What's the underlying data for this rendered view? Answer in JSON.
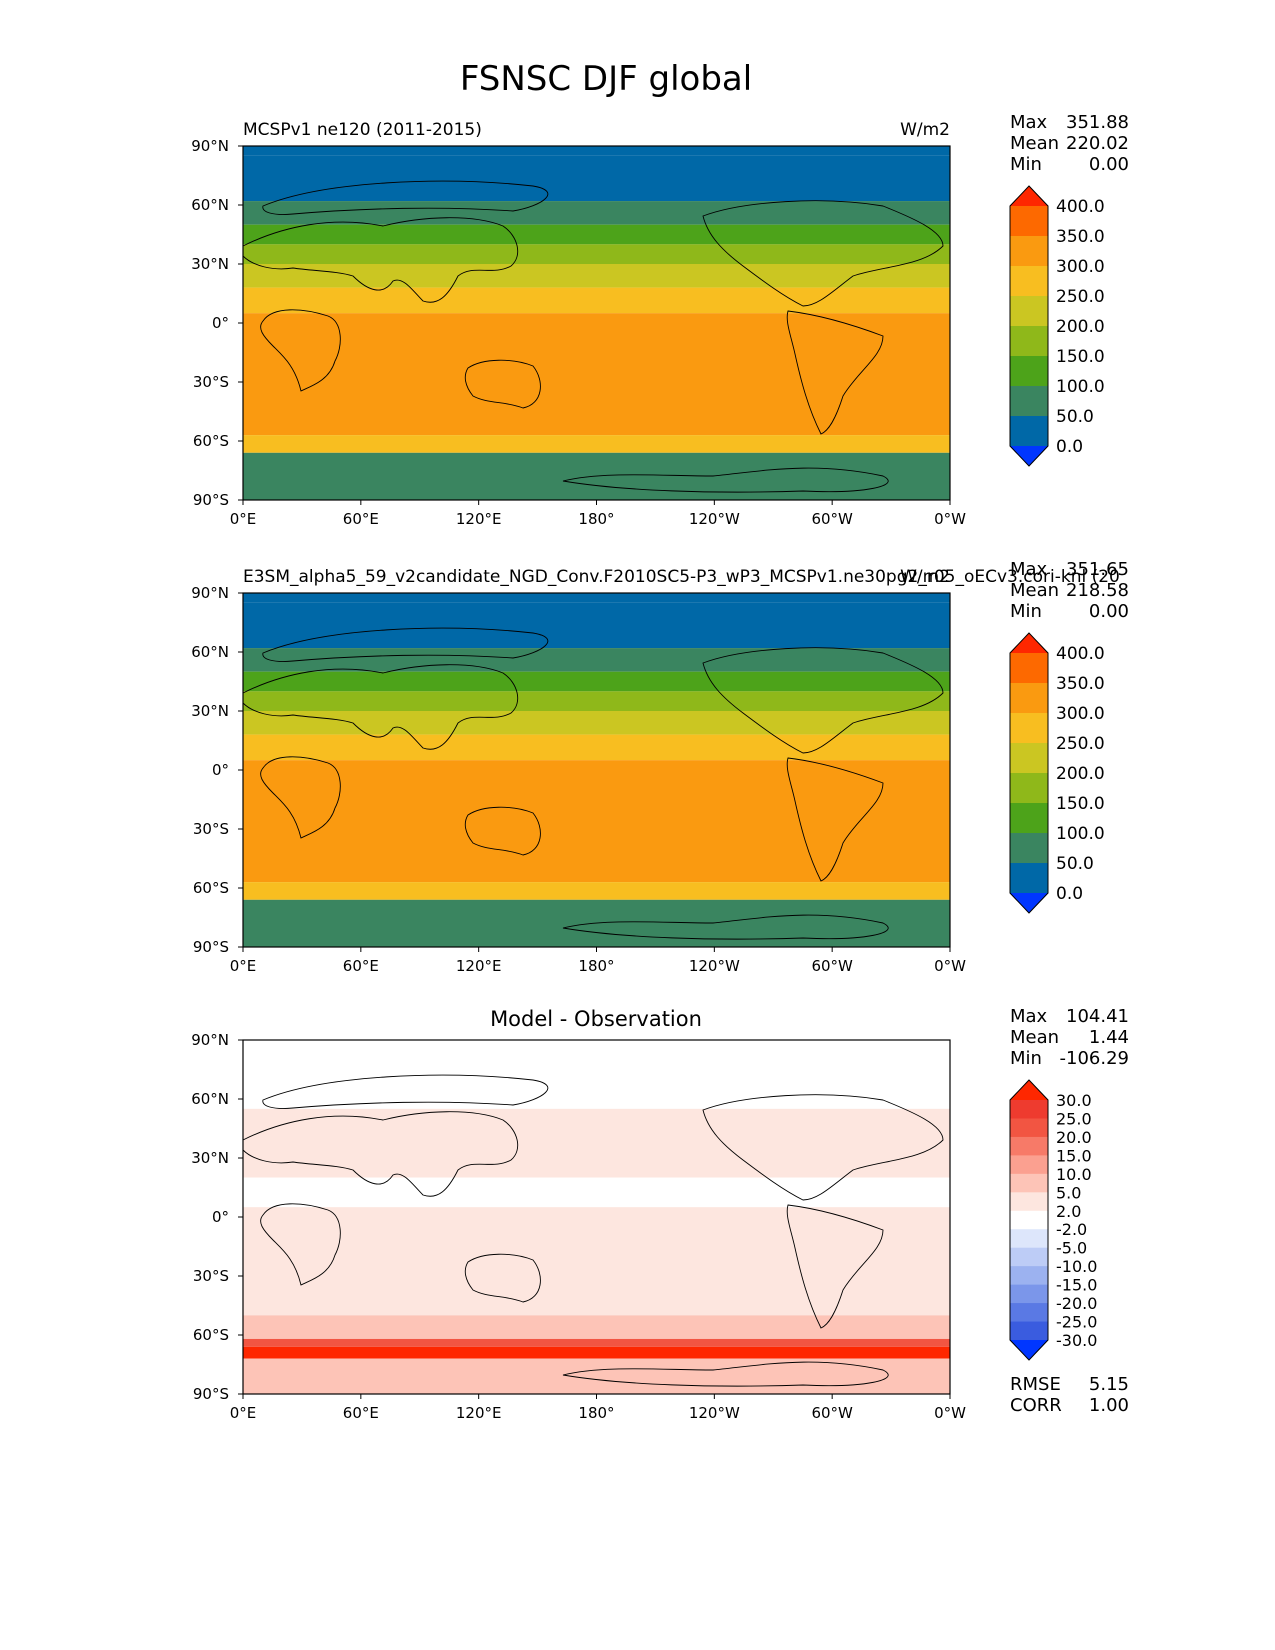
{
  "figure_title": "FSNSC DJF global",
  "chart_data": [
    {
      "type": "heatmap",
      "title_left": "MCSPv1 ne120 (2011-2015)",
      "title_right": "W/m2",
      "units": "W/m2",
      "stats": [
        {
          "label": "Max",
          "value": "351.88"
        },
        {
          "label": "Mean",
          "value": "220.02"
        },
        {
          "label": "Min",
          "value": "0.00"
        }
      ],
      "xticks": [
        "0°E",
        "60°E",
        "120°E",
        "180°",
        "120°W",
        "60°W",
        "0°W"
      ],
      "yticks": [
        "90°N",
        "60°N",
        "30°N",
        "0°",
        "30°S",
        "60°S",
        "90°S"
      ],
      "xlim": [
        0,
        360
      ],
      "ylim": [
        -90,
        90
      ],
      "colorbar_levels": [
        "400.0",
        "350.0",
        "300.0",
        "250.0",
        "200.0",
        "150.0",
        "100.0",
        "50.0",
        "0.0"
      ],
      "colorbar_colors": [
        "#fe2700",
        "#fd6900",
        "#fa9a10",
        "#f8be20",
        "#cbc622",
        "#8fb81a",
        "#4da31a",
        "#3a8560",
        "#0068a7",
        "#0036ff"
      ],
      "zonal_bands": [
        {
          "lat_from": 90,
          "lat_to": 85,
          "value": 10
        },
        {
          "lat_from": 85,
          "lat_to": 62,
          "value": 30
        },
        {
          "lat_from": 62,
          "lat_to": 50,
          "value": 80
        },
        {
          "lat_from": 50,
          "lat_to": 40,
          "value": 125
        },
        {
          "lat_from": 40,
          "lat_to": 30,
          "value": 175
        },
        {
          "lat_from": 30,
          "lat_to": 18,
          "value": 225
        },
        {
          "lat_from": 18,
          "lat_to": 5,
          "value": 275
        },
        {
          "lat_from": 5,
          "lat_to": -57,
          "value": 320
        },
        {
          "lat_from": -57,
          "lat_to": -66,
          "value": 290
        },
        {
          "lat_from": -66,
          "lat_to": -90,
          "value": 80
        }
      ]
    },
    {
      "type": "heatmap",
      "title_left": "E3SM_alpha5_59_v2candidate_NGD_Conv.F2010SC5-P3_wP3_MCSPv1.ne30pg2_r05_oECv3.cori-knl (20",
      "title_right": "W/m2",
      "units": "W/m2",
      "stats": [
        {
          "label": "Max",
          "value": "351.65"
        },
        {
          "label": "Mean",
          "value": "218.58"
        },
        {
          "label": "Min",
          "value": "0.00"
        }
      ],
      "xticks": [
        "0°E",
        "60°E",
        "120°E",
        "180°",
        "120°W",
        "60°W",
        "0°W"
      ],
      "yticks": [
        "90°N",
        "60°N",
        "30°N",
        "0°",
        "30°S",
        "60°S",
        "90°S"
      ],
      "xlim": [
        0,
        360
      ],
      "ylim": [
        -90,
        90
      ],
      "colorbar_levels": [
        "400.0",
        "350.0",
        "300.0",
        "250.0",
        "200.0",
        "150.0",
        "100.0",
        "50.0",
        "0.0"
      ],
      "colorbar_colors": [
        "#fe2700",
        "#fd6900",
        "#fa9a10",
        "#f8be20",
        "#cbc622",
        "#8fb81a",
        "#4da31a",
        "#3a8560",
        "#0068a7",
        "#0036ff"
      ],
      "zonal_bands": [
        {
          "lat_from": 90,
          "lat_to": 85,
          "value": 10
        },
        {
          "lat_from": 85,
          "lat_to": 62,
          "value": 30
        },
        {
          "lat_from": 62,
          "lat_to": 50,
          "value": 80
        },
        {
          "lat_from": 50,
          "lat_to": 40,
          "value": 125
        },
        {
          "lat_from": 40,
          "lat_to": 30,
          "value": 175
        },
        {
          "lat_from": 30,
          "lat_to": 18,
          "value": 225
        },
        {
          "lat_from": 18,
          "lat_to": 5,
          "value": 275
        },
        {
          "lat_from": 5,
          "lat_to": -57,
          "value": 320
        },
        {
          "lat_from": -57,
          "lat_to": -66,
          "value": 290
        },
        {
          "lat_from": -66,
          "lat_to": -90,
          "value": 80
        }
      ]
    },
    {
      "type": "heatmap",
      "title_center": "Model - Observation",
      "stats": [
        {
          "label": "Max",
          "value": "104.41"
        },
        {
          "label": "Mean",
          "value": "1.44"
        },
        {
          "label": "Min",
          "value": "-106.29"
        }
      ],
      "extra_stats": [
        {
          "label": "RMSE",
          "value": "5.15"
        },
        {
          "label": "CORR",
          "value": "1.00"
        }
      ],
      "xticks": [
        "0°E",
        "60°E",
        "120°E",
        "180°",
        "120°W",
        "60°W",
        "0°W"
      ],
      "yticks": [
        "90°N",
        "60°N",
        "30°N",
        "0°",
        "30°S",
        "60°S",
        "90°S"
      ],
      "xlim": [
        0,
        360
      ],
      "ylim": [
        -90,
        90
      ],
      "colorbar_levels": [
        "30.0",
        "25.0",
        "20.0",
        "15.0",
        "10.0",
        "5.0",
        "2.0",
        "-2.0",
        "-5.0",
        "-10.0",
        "-15.0",
        "-20.0",
        "-25.0",
        "-30.0"
      ],
      "colorbar_colors": [
        "#fe2700",
        "#ee3b2f",
        "#f25542",
        "#f77a68",
        "#fba090",
        "#fdc4b7",
        "#fde6df",
        "#ffffff",
        "#dde6fb",
        "#bdccf6",
        "#9cb2f0",
        "#7b96ea",
        "#5a79e4",
        "#3a5cdf",
        "#0036ff"
      ],
      "zonal_bands": [
        {
          "lat_from": 90,
          "lat_to": 55,
          "value": 0
        },
        {
          "lat_from": 55,
          "lat_to": 20,
          "value": 3
        },
        {
          "lat_from": 20,
          "lat_to": 5,
          "value": 0
        },
        {
          "lat_from": 5,
          "lat_to": -50,
          "value": 3
        },
        {
          "lat_from": -50,
          "lat_to": -62,
          "value": 8
        },
        {
          "lat_from": -62,
          "lat_to": -66,
          "value": 20
        },
        {
          "lat_from": -66,
          "lat_to": -72,
          "value": 35
        },
        {
          "lat_from": -72,
          "lat_to": -90,
          "value": 8
        }
      ]
    }
  ]
}
